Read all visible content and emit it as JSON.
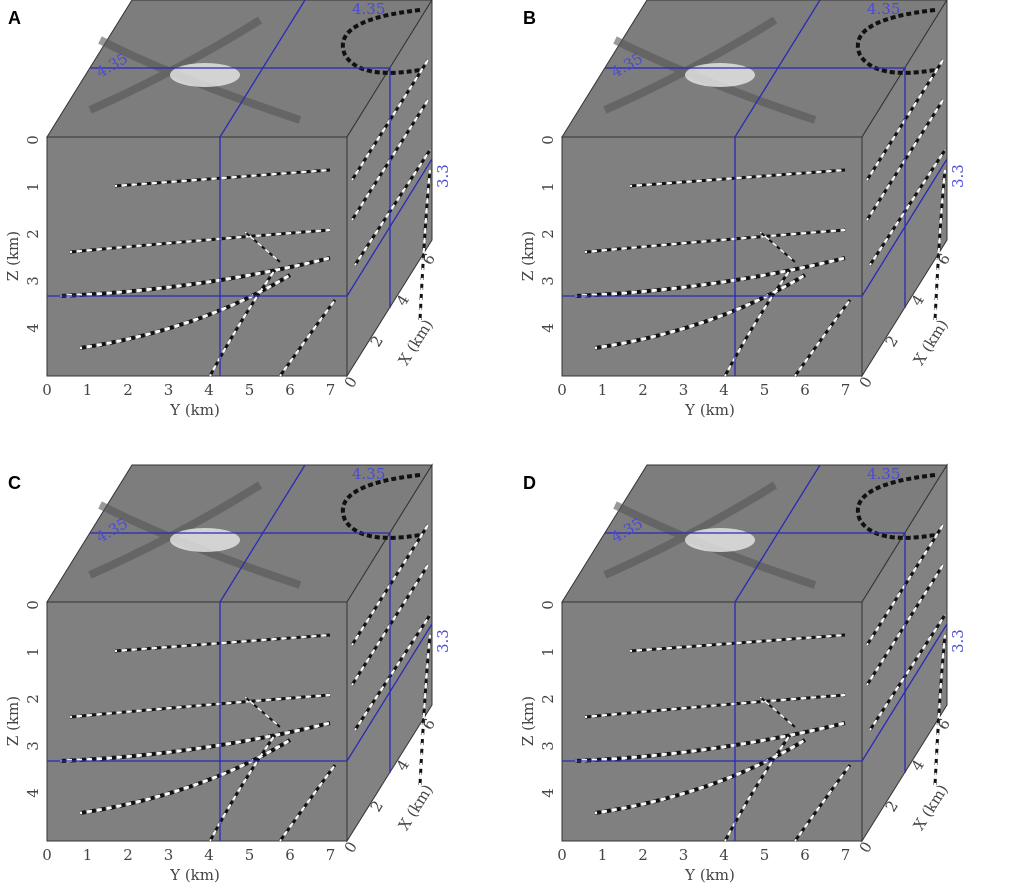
{
  "panels": [
    {
      "label": "A",
      "slice_labels": [
        "4.35",
        "4.35",
        "3.3"
      ]
    },
    {
      "label": "B",
      "slice_labels": [
        "4.35",
        "4.35",
        "3.3"
      ]
    },
    {
      "label": "C",
      "slice_labels": [
        "4.35",
        "4.35",
        "3.3"
      ]
    },
    {
      "label": "D",
      "slice_labels": [
        "4.35",
        "4.35",
        "3.3"
      ]
    }
  ],
  "axes": {
    "z_label": "Z (km)",
    "y_label": "Y (km)",
    "x_label": "X (km)",
    "z_ticks": [
      "0",
      "1",
      "2",
      "3",
      "4"
    ],
    "y_ticks": [
      "0",
      "1",
      "2",
      "3",
      "4",
      "5",
      "6",
      "7"
    ],
    "x_ticks": [
      "0",
      "2",
      "4",
      "6"
    ]
  }
}
